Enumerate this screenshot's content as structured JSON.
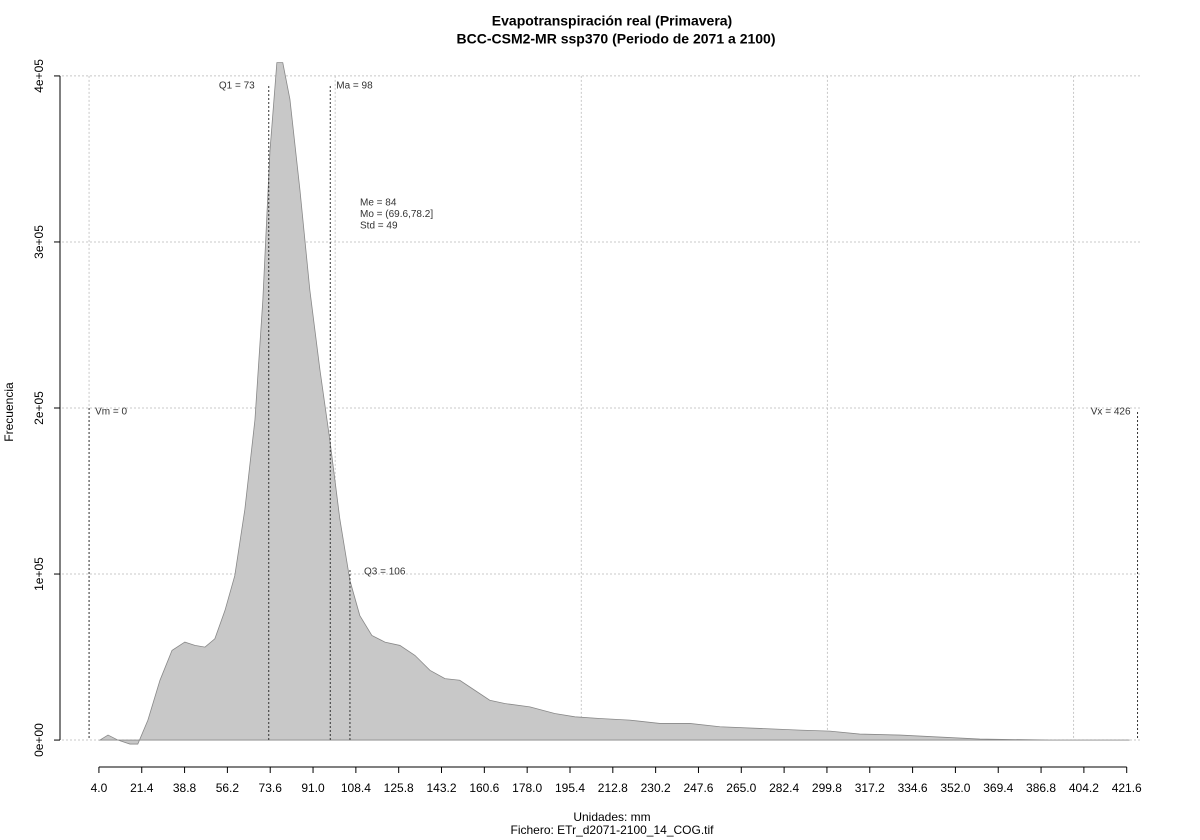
{
  "chart_data": {
    "type": "area",
    "title": "Evapotranspiración real (Primavera)",
    "subtitle": "BCC-CSM2-MR ssp370 (Periodo de 2071 a 2100)",
    "x_label": "Unidades: mm",
    "caption": "Fichero: ETr_d2071-2100_14_COG.tif",
    "y_label": "Frecuencia",
    "color": "#c8c8c8",
    "x": [
      4.4,
      7.7,
      11.7,
      16.6,
      19.8,
      23.9,
      28.8,
      33.7,
      38.9,
      43,
      47.1,
      51.1,
      55.2,
      59.2,
      63.3,
      67.4,
      70.6,
      73.5,
      76.3,
      78.7,
      81.6,
      85.7,
      89.7,
      93.8,
      97.8,
      101.9,
      106,
      110,
      114.9,
      120.2,
      126.3,
      132.4,
      138.5,
      144.6,
      150.6,
      156.7,
      162.8,
      168.9,
      179.1,
      189.2,
      197.4,
      207.5,
      219.7,
      231.9,
      244.1,
      256.3,
      272.5,
      288.8,
      301,
      313.1,
      329.4,
      345.6,
      361.9,
      390.3,
      422.8
    ],
    "values": [
      0,
      3000,
      0,
      -2400,
      -2400,
      12000,
      36000,
      54000,
      59000,
      57000,
      56000,
      61000,
      78000,
      99000,
      139000,
      193000,
      265000,
      355000,
      408000,
      408000,
      386000,
      331000,
      271000,
      223000,
      181000,
      133000,
      96000,
      75000,
      63000,
      59000,
      57000,
      51000,
      42000,
      37000,
      36000,
      30000,
      24000,
      22000,
      20000,
      16000,
      14000,
      13000,
      12000,
      10000,
      10000,
      8000,
      7000,
      6000,
      5400,
      3600,
      3000,
      1800,
      600,
      0,
      0
    ],
    "xlim": [
      -11,
      427
    ],
    "ylim": [
      -9600,
      410800
    ],
    "xticks": [
      {
        "value": 4,
        "label": "4.0"
      },
      21.4,
      38.8,
      56.2,
      73.6,
      {
        "value": 91,
        "label": "91.0"
      },
      108.4,
      125.8,
      143.2,
      160.6,
      {
        "value": 178,
        "label": "178.0"
      },
      195.4,
      212.8,
      230.2,
      247.6,
      {
        "value": 265,
        "label": "265.0"
      },
      282.4,
      299.8,
      317.2,
      334.6,
      {
        "value": 352,
        "label": "352.0"
      },
      369.4,
      386.8,
      404.2,
      421.6
    ],
    "yticks": [
      {
        "value": 0,
        "label": "0e+00"
      },
      {
        "value": 100000,
        "label": "1e+05"
      },
      {
        "value": 200000,
        "label": "2e+05"
      },
      {
        "value": 300000,
        "label": "3e+05"
      },
      {
        "value": 400000,
        "label": "4e+05"
      }
    ],
    "x_grid": [
      0,
      100,
      200,
      300,
      400
    ],
    "grid": true,
    "markers": [
      {
        "label": "Vm = 0",
        "x": 0
      },
      {
        "label": "Q1 = 73",
        "x": 73
      },
      {
        "label": "Ma = 98",
        "x": 98
      },
      {
        "label": "Q3 = 106",
        "x": 106
      },
      {
        "label": "Vx = 426",
        "x": 426
      }
    ],
    "stats": [
      "Me = 84",
      "Mo = (69.6,78.2]",
      "Std = 49"
    ]
  }
}
